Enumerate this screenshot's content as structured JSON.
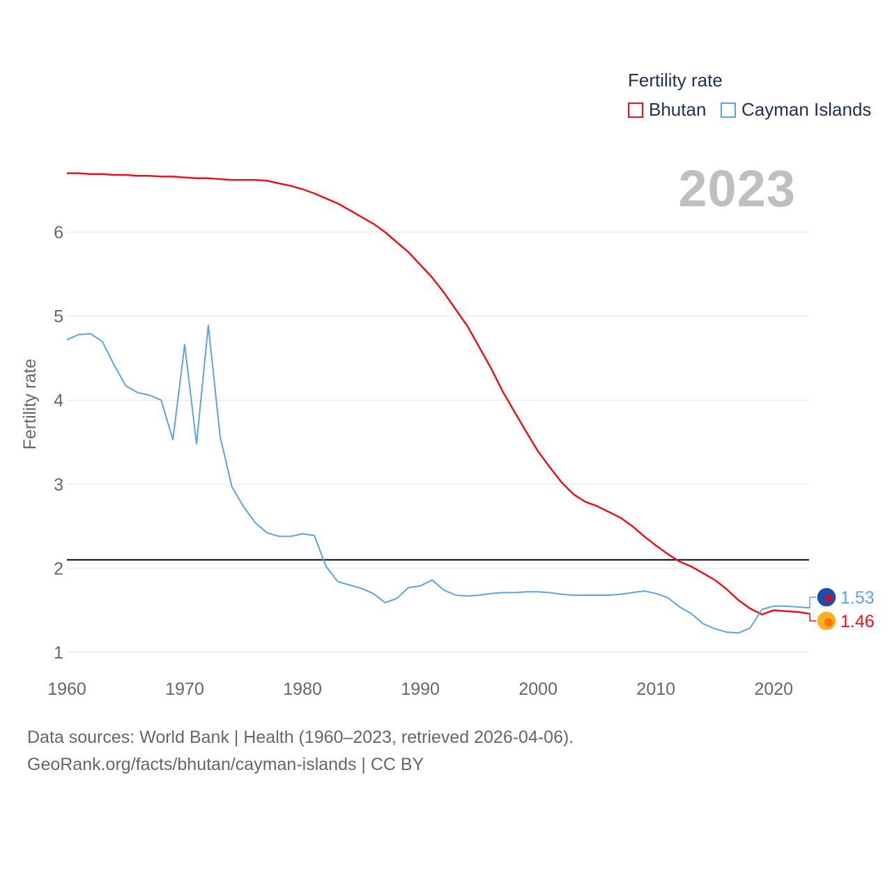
{
  "legend": {
    "title": "Fertility rate",
    "items": [
      {
        "label": "Bhutan",
        "color": "#e8121b"
      },
      {
        "label": "Cayman Islands",
        "color": "#5ba3e3"
      }
    ]
  },
  "year_label": "2023",
  "source_line1": "Data sources: World Bank | Health (1960–2023, retrieved 2026-04-06).",
  "source_line2": "GeoRank.org/facts/bhutan/cayman-islands | CC BY",
  "chart_data": {
    "type": "line",
    "title": "",
    "xlabel": "",
    "ylabel": "Fertility rate",
    "xlim": [
      1960,
      2023
    ],
    "ylim": [
      0.9,
      7.0
    ],
    "xticks": [
      1960,
      1970,
      1980,
      1990,
      2000,
      2010,
      2020
    ],
    "yticks": [
      1,
      2,
      3,
      4,
      5,
      6
    ],
    "reference_line": {
      "y": 2.1,
      "color": "#000000"
    },
    "grid": true,
    "legend_position": "top-right",
    "x": [
      1960,
      1961,
      1962,
      1963,
      1964,
      1965,
      1966,
      1967,
      1968,
      1969,
      1970,
      1971,
      1972,
      1973,
      1974,
      1975,
      1976,
      1977,
      1978,
      1979,
      1980,
      1981,
      1982,
      1983,
      1984,
      1985,
      1986,
      1987,
      1988,
      1989,
      1990,
      1991,
      1992,
      1993,
      1994,
      1995,
      1996,
      1997,
      1998,
      1999,
      2000,
      2001,
      2002,
      2003,
      2004,
      2005,
      2006,
      2007,
      2008,
      2009,
      2010,
      2011,
      2012,
      2013,
      2014,
      2015,
      2016,
      2017,
      2018,
      2019,
      2020,
      2021,
      2022,
      2023
    ],
    "series": [
      {
        "name": "Bhutan",
        "color": "#e8121b",
        "end_label": "1.46",
        "values": [
          6.7,
          6.7,
          6.69,
          6.69,
          6.68,
          6.68,
          6.67,
          6.67,
          6.66,
          6.66,
          6.65,
          6.64,
          6.64,
          6.63,
          6.62,
          6.62,
          6.62,
          6.61,
          6.58,
          6.55,
          6.51,
          6.46,
          6.4,
          6.34,
          6.26,
          6.18,
          6.1,
          6.0,
          5.88,
          5.76,
          5.61,
          5.46,
          5.28,
          5.08,
          4.88,
          4.63,
          4.38,
          4.1,
          3.86,
          3.62,
          3.39,
          3.2,
          3.02,
          2.88,
          2.79,
          2.74,
          2.67,
          2.6,
          2.5,
          2.38,
          2.27,
          2.17,
          2.08,
          2.02,
          1.94,
          1.86,
          1.75,
          1.62,
          1.52,
          1.45,
          1.5,
          1.49,
          1.48,
          1.46
        ]
      },
      {
        "name": "Cayman Islands",
        "color": "#5ba3e3",
        "end_label": "1.53",
        "values": [
          4.72,
          4.78,
          4.79,
          4.7,
          4.42,
          4.17,
          4.09,
          4.06,
          4.0,
          3.53,
          4.66,
          3.48,
          4.89,
          3.57,
          2.97,
          2.73,
          2.54,
          2.42,
          2.38,
          2.38,
          2.41,
          2.39,
          2.02,
          1.84,
          1.8,
          1.76,
          1.7,
          1.59,
          1.64,
          1.77,
          1.79,
          1.86,
          1.74,
          1.68,
          1.67,
          1.68,
          1.7,
          1.71,
          1.71,
          1.72,
          1.72,
          1.71,
          1.69,
          1.68,
          1.68,
          1.68,
          1.68,
          1.69,
          1.71,
          1.73,
          1.7,
          1.65,
          1.54,
          1.46,
          1.34,
          1.28,
          1.24,
          1.23,
          1.29,
          1.51,
          1.55,
          1.55,
          1.54,
          1.53
        ]
      }
    ]
  }
}
